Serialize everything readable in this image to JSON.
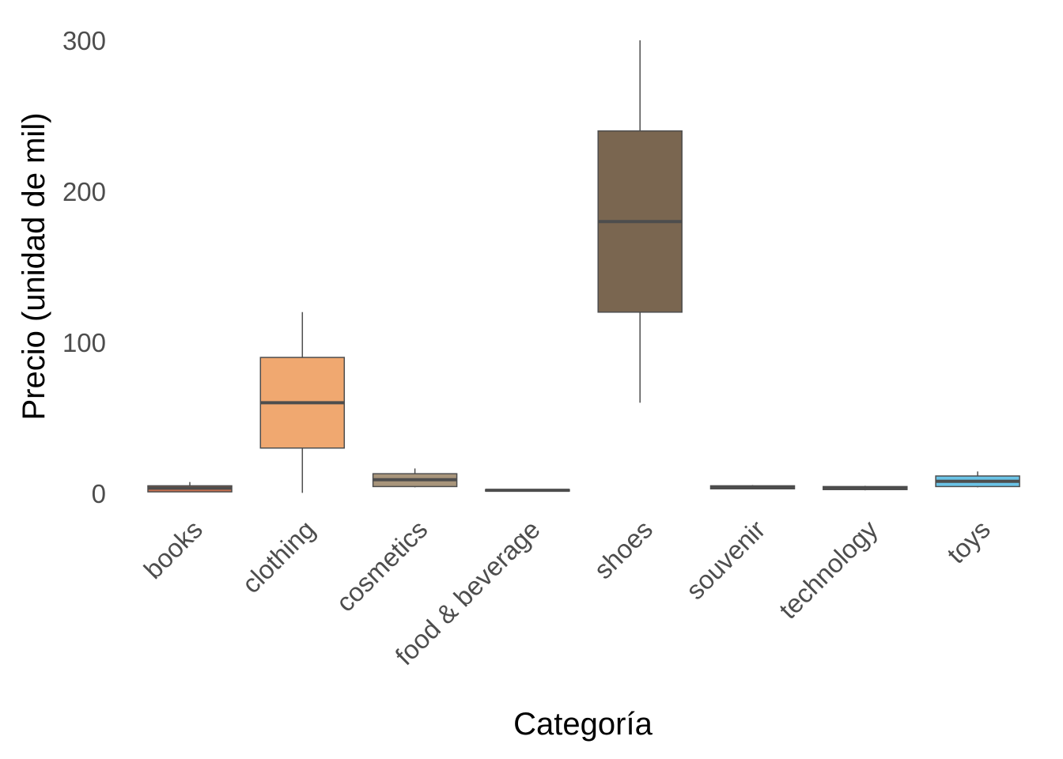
{
  "chart_data": {
    "type": "boxplot",
    "xlabel": "Categoría",
    "ylabel": "Precio (unidad de mil)",
    "ylim": [
      -5,
      300
    ],
    "y_ticks": [
      "0",
      "100",
      "200",
      "300"
    ],
    "grid": false,
    "legend": "none",
    "categories": [
      "books",
      "clothing",
      "cosmetics",
      "food & beverage",
      "shoes",
      "souvenir",
      "technology",
      "toys"
    ],
    "boxes": [
      {
        "category": "books",
        "min": 1.0,
        "q1": 1.0,
        "median": 3.5,
        "q3": 5.0,
        "max": 7.5,
        "color": "#c8704f"
      },
      {
        "category": "clothing",
        "min": 0.3,
        "q1": 30.0,
        "median": 60.0,
        "q3": 90.0,
        "max": 120.0,
        "color": "#f0a870"
      },
      {
        "category": "cosmetics",
        "min": 4.0,
        "q1": 4.5,
        "median": 9.0,
        "q3": 13.0,
        "max": 16.5,
        "color": "#a8957b"
      },
      {
        "category": "food & beverage",
        "min": 1.5,
        "q1": 1.5,
        "median": 2.0,
        "q3": 2.5,
        "max": 2.5,
        "color": "#6b6b6b"
      },
      {
        "category": "shoes",
        "min": 60.0,
        "q1": 120.0,
        "median": 180.0,
        "q3": 240.0,
        "max": 300.0,
        "color": "#7a6650"
      },
      {
        "category": "souvenir",
        "min": 3.0,
        "q1": 3.0,
        "median": 4.0,
        "q3": 5.0,
        "max": 5.5,
        "color": "#6e7f79"
      },
      {
        "category": "technology",
        "min": 2.0,
        "q1": 2.5,
        "median": 3.5,
        "q3": 4.5,
        "max": 5.0,
        "color": "#6a7d88"
      },
      {
        "category": "toys",
        "min": 4.0,
        "q1": 4.5,
        "median": 8.0,
        "q3": 11.5,
        "max": 14.5,
        "color": "#6ac3e6"
      }
    ]
  }
}
